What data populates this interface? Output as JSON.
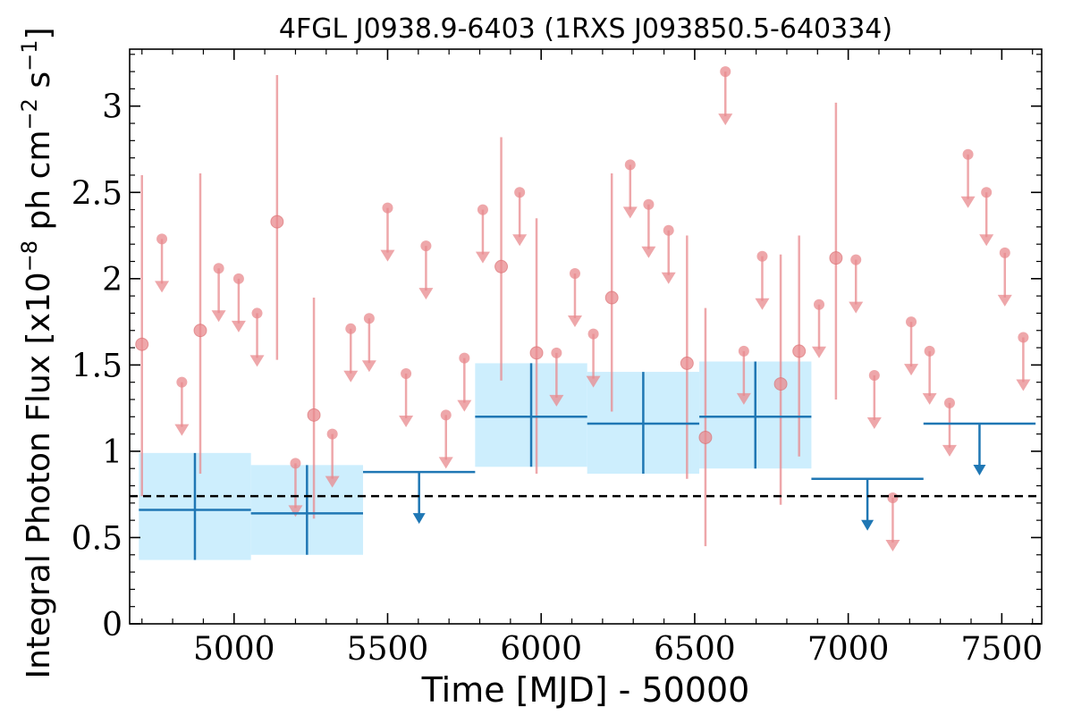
{
  "chart_data": {
    "type": "scatter",
    "title": "4FGL J0938.9-6403 (1RXS J093850.5-640334)",
    "xlabel": "Time [MJD] - 50000",
    "ylabel_main": "Integral Photon Flux [x10",
    "ylabel_exp1": "−8",
    "ylabel_mid": " ph cm",
    "ylabel_exp2": "−2",
    "ylabel_s": " s",
    "ylabel_exp3": "−1",
    "ylabel_end": "]",
    "xlim": [
      4660,
      7630
    ],
    "ylim": [
      0,
      3.33
    ],
    "xticks": [
      5000,
      5500,
      6000,
      6500,
      7000,
      7500
    ],
    "xtick_labels": [
      "5000",
      "5500",
      "6000",
      "6500",
      "7000",
      "7500"
    ],
    "yticks": [
      0,
      0.5,
      1,
      1.5,
      2,
      2.5,
      3
    ],
    "ytick_labels": [
      "0",
      "0.5",
      "1",
      "1.5",
      "2",
      "2.5",
      "3"
    ],
    "average_flux": 0.74,
    "colors": {
      "short_bin": "#e88a8d",
      "long_bin": "#1f77b4",
      "long_bin_band": "#cdeefd",
      "average_line": "#000000"
    },
    "short_bin_detections": [
      {
        "x": 4700,
        "y": 1.62,
        "lo": 0.74,
        "hi": 2.6
      },
      {
        "x": 4890,
        "y": 1.7,
        "lo": 0.87,
        "hi": 2.61
      },
      {
        "x": 5140,
        "y": 2.33,
        "lo": 1.53,
        "hi": 3.18
      },
      {
        "x": 5260,
        "y": 1.21,
        "lo": 0.61,
        "hi": 1.89
      },
      {
        "x": 5870,
        "y": 2.07,
        "lo": 1.41,
        "hi": 2.82
      },
      {
        "x": 5985,
        "y": 1.57,
        "lo": 0.87,
        "hi": 2.35
      },
      {
        "x": 6230,
        "y": 1.89,
        "lo": 1.23,
        "hi": 2.61
      },
      {
        "x": 6475,
        "y": 1.51,
        "lo": 0.84,
        "hi": 2.25
      },
      {
        "x": 6535,
        "y": 1.08,
        "lo": 0.45,
        "hi": 1.83
      },
      {
        "x": 6780,
        "y": 1.39,
        "lo": 0.69,
        "hi": 2.14
      },
      {
        "x": 6840,
        "y": 1.58,
        "lo": 0.97,
        "hi": 2.25
      },
      {
        "x": 6960,
        "y": 2.12,
        "lo": 1.3,
        "hi": 3.02
      }
    ],
    "short_bin_upper_limits": [
      {
        "x": 4765,
        "y": 2.23
      },
      {
        "x": 4830,
        "y": 1.4
      },
      {
        "x": 4950,
        "y": 2.06
      },
      {
        "x": 5015,
        "y": 2.0
      },
      {
        "x": 5075,
        "y": 1.8
      },
      {
        "x": 5200,
        "y": 0.93
      },
      {
        "x": 5320,
        "y": 1.1
      },
      {
        "x": 5380,
        "y": 1.71
      },
      {
        "x": 5440,
        "y": 1.77
      },
      {
        "x": 5500,
        "y": 2.41
      },
      {
        "x": 5560,
        "y": 1.45
      },
      {
        "x": 5625,
        "y": 2.19
      },
      {
        "x": 5690,
        "y": 1.21
      },
      {
        "x": 5750,
        "y": 1.54
      },
      {
        "x": 5810,
        "y": 2.4
      },
      {
        "x": 5930,
        "y": 2.5
      },
      {
        "x": 6050,
        "y": 1.57
      },
      {
        "x": 6110,
        "y": 2.03
      },
      {
        "x": 6170,
        "y": 1.68
      },
      {
        "x": 6290,
        "y": 2.66
      },
      {
        "x": 6350,
        "y": 2.43
      },
      {
        "x": 6415,
        "y": 2.28
      },
      {
        "x": 6600,
        "y": 3.2
      },
      {
        "x": 6660,
        "y": 1.58
      },
      {
        "x": 6720,
        "y": 2.13
      },
      {
        "x": 6905,
        "y": 1.85
      },
      {
        "x": 7025,
        "y": 2.11
      },
      {
        "x": 7085,
        "y": 1.44
      },
      {
        "x": 7145,
        "y": 0.73
      },
      {
        "x": 7205,
        "y": 1.75
      },
      {
        "x": 7265,
        "y": 1.58
      },
      {
        "x": 7330,
        "y": 1.28
      },
      {
        "x": 7390,
        "y": 2.72
      },
      {
        "x": 7450,
        "y": 2.5
      },
      {
        "x": 7510,
        "y": 2.15
      },
      {
        "x": 7570,
        "y": 1.66
      }
    ],
    "long_bin_detections": [
      {
        "x0": 4690,
        "x1": 5055,
        "y": 0.66,
        "lo": 0.37,
        "hi": 0.99
      },
      {
        "x0": 5055,
        "x1": 5420,
        "y": 0.64,
        "lo": 0.4,
        "hi": 0.92
      },
      {
        "x0": 5785,
        "x1": 6150,
        "y": 1.2,
        "lo": 0.91,
        "hi": 1.51
      },
      {
        "x0": 6150,
        "x1": 6515,
        "y": 1.16,
        "lo": 0.87,
        "hi": 1.46
      },
      {
        "x0": 6515,
        "x1": 6880,
        "y": 1.2,
        "lo": 0.9,
        "hi": 1.52
      }
    ],
    "long_bin_upper_limits": [
      {
        "x0": 5420,
        "x1": 5785,
        "y": 0.88
      },
      {
        "x0": 6880,
        "x1": 7245,
        "y": 0.84
      },
      {
        "x0": 7245,
        "x1": 7610,
        "y": 1.16
      }
    ]
  }
}
